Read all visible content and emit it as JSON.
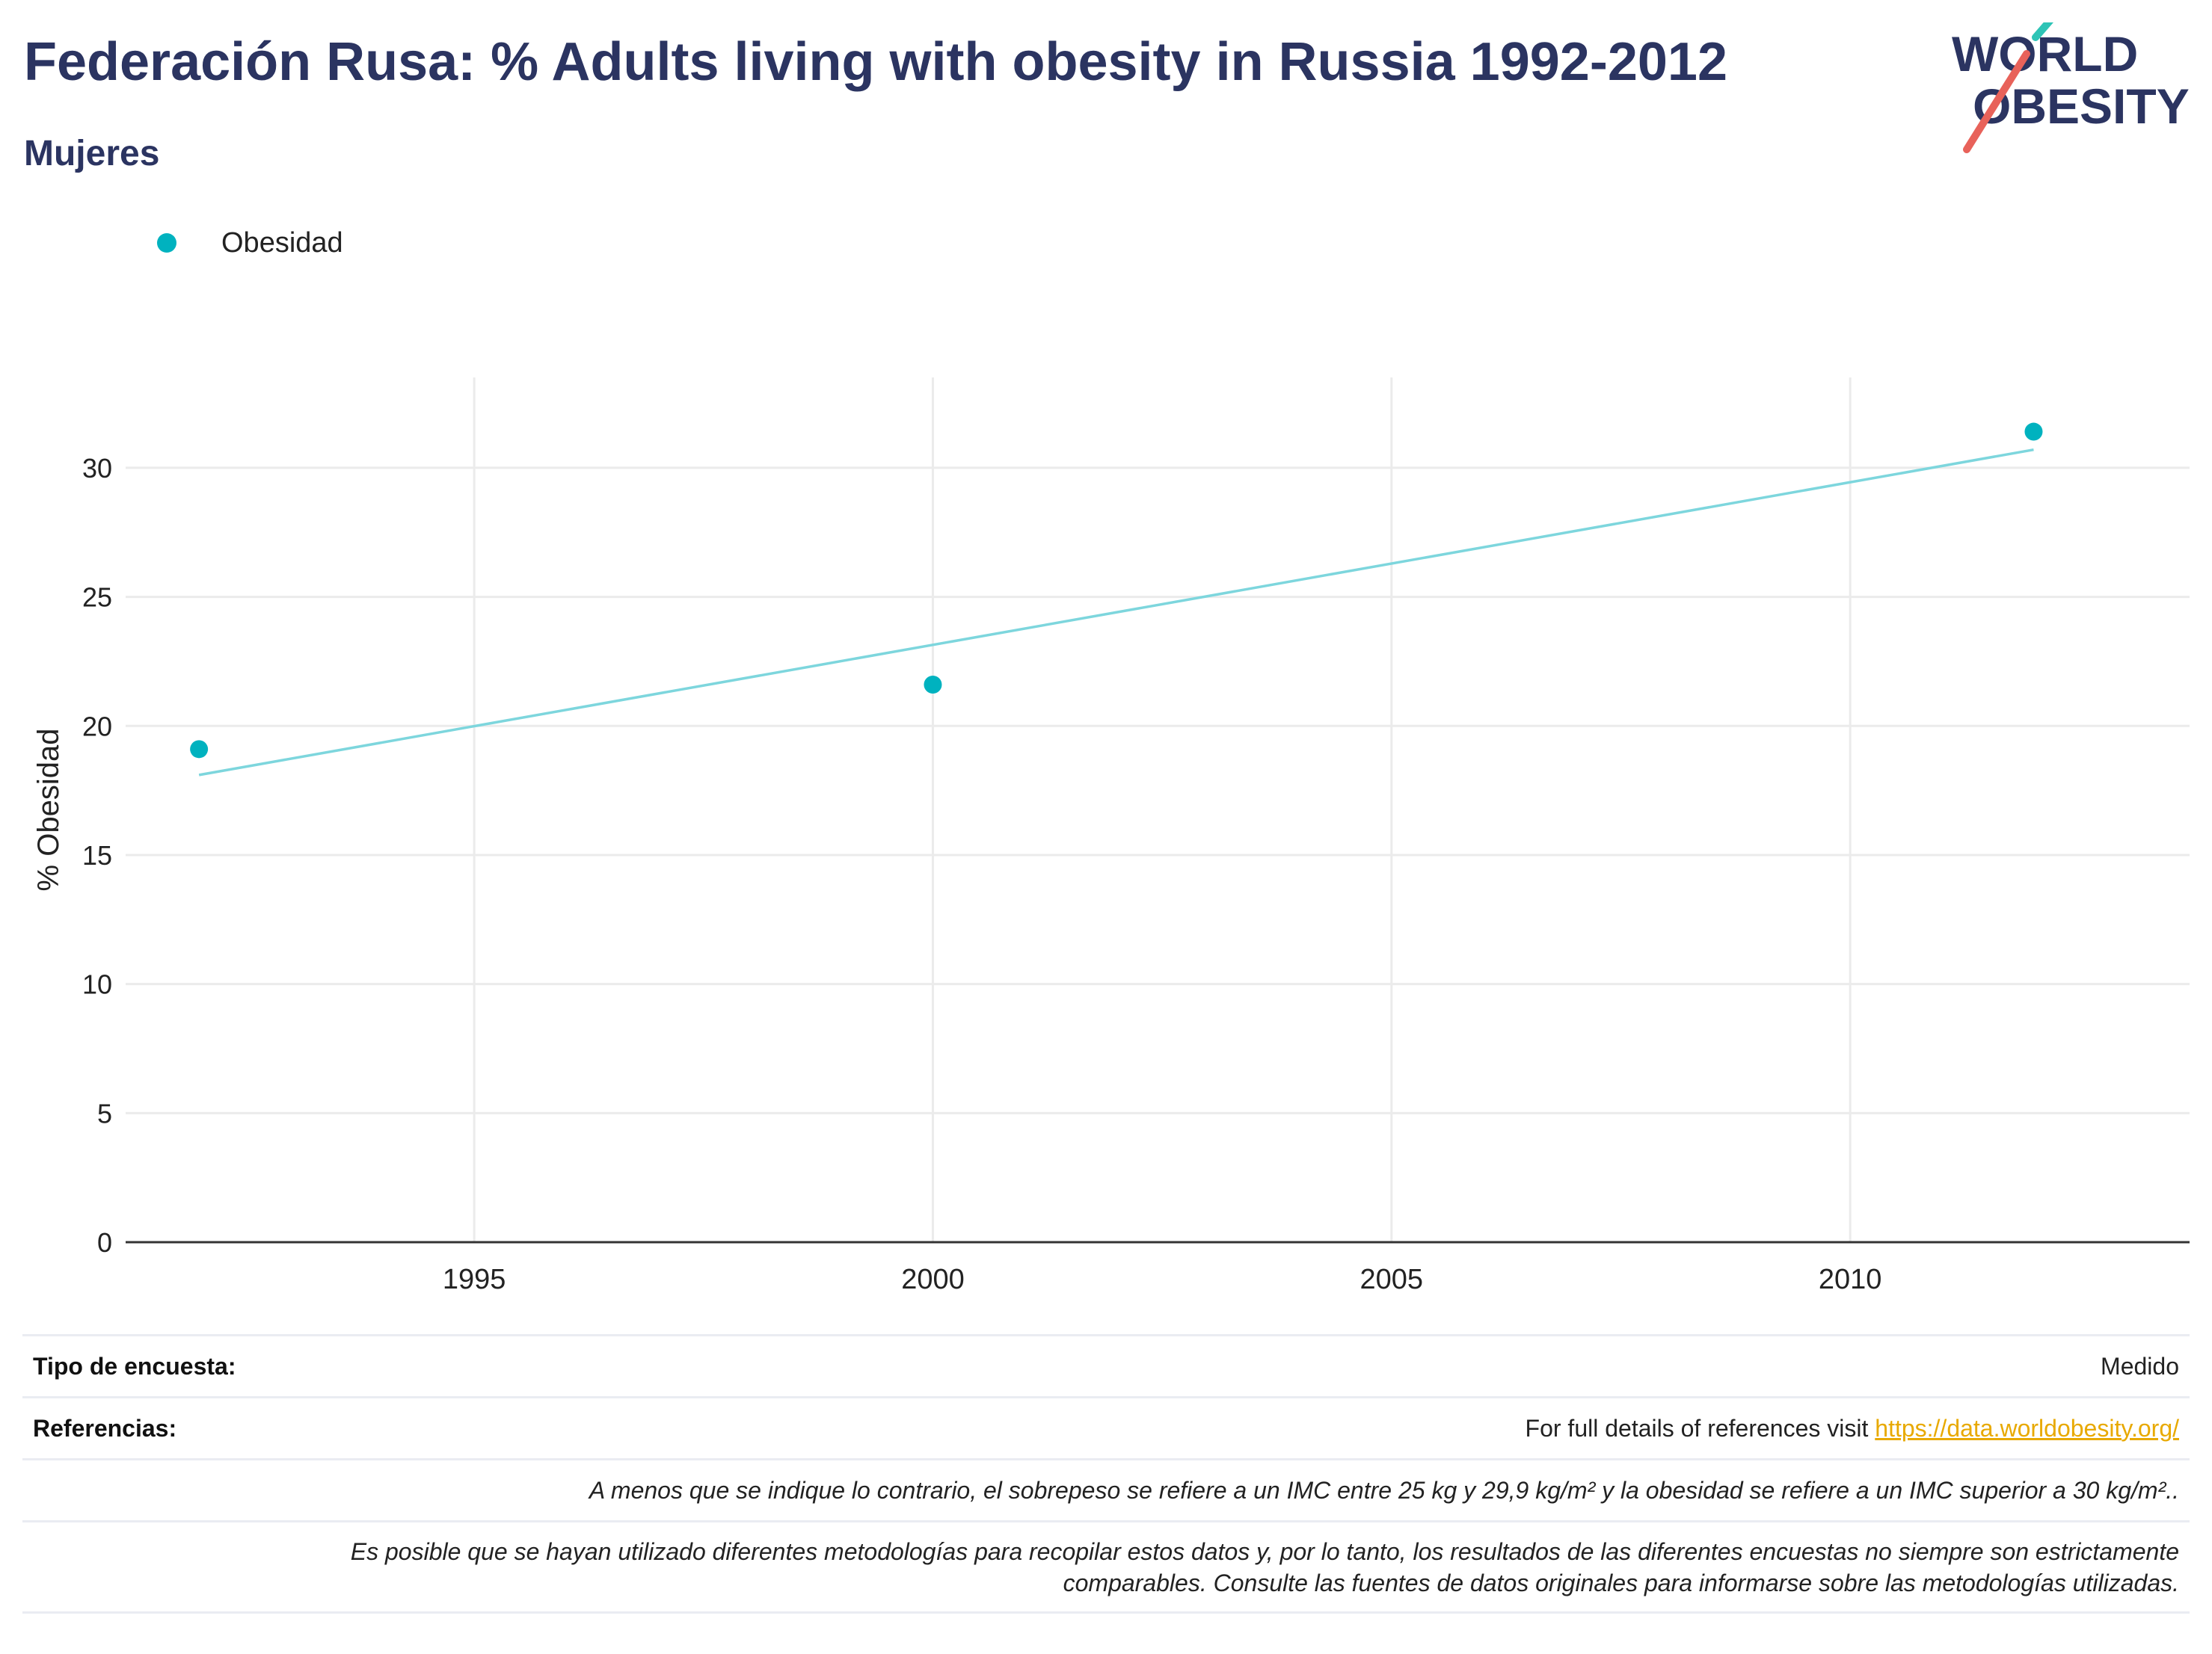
{
  "header": {
    "title": "Federación Rusa: % Adults living with obesity in Russia 1992-2012",
    "subtitle": "Mujeres",
    "logo_line1": "WORLD",
    "logo_line2": "OBESITY"
  },
  "legend": {
    "items": [
      {
        "label": "Obesidad",
        "color": "#00b2bf"
      }
    ]
  },
  "chart_data": {
    "type": "scatter",
    "title": "Federación Rusa: % Adults living with obesity in Russia 1992-2012",
    "subtitle": "Mujeres",
    "ylabel": "% Obesidad",
    "xlabel": "",
    "xlim": [
      1991.2,
      2013.7
    ],
    "ylim": [
      0,
      33.5
    ],
    "x_ticks": [
      1995,
      2000,
      2005,
      2010
    ],
    "y_ticks": [
      0,
      5,
      10,
      15,
      20,
      25,
      30
    ],
    "grid": true,
    "legend_position": "top-left",
    "series": [
      {
        "name": "Obesidad",
        "color": "#00b2bf",
        "points": [
          {
            "x": 1992,
            "y": 19.1
          },
          {
            "x": 2000,
            "y": 21.6
          },
          {
            "x": 2012,
            "y": 31.4
          }
        ]
      }
    ],
    "trendline": {
      "color": "#7dd6dd",
      "points": [
        {
          "x": 1992,
          "y": 18.1
        },
        {
          "x": 2012,
          "y": 30.7
        }
      ]
    }
  },
  "info": {
    "survey_type_label": "Tipo de encuesta:",
    "survey_type_value": "Medido",
    "references_label": "Referencias:",
    "references_text": "For full details of references visit ",
    "references_link": "https://data.worldobesity.org/",
    "note1": "A menos que se indique lo contrario, el sobrepeso se refiere a un IMC entre 25 kg y 29,9 kg/m² y la obesidad se refiere a un IMC superior a 30 kg/m²..",
    "note2_line1": "Es posible que se hayan utilizado diferentes metodologías para recopilar estos datos y, por lo tanto, los resultados de las diferentes encuestas no siempre son estrictamente",
    "note2_line2": "comparables. Consulte las fuentes de datos originales para informarse sobre las metodologías utilizadas."
  }
}
